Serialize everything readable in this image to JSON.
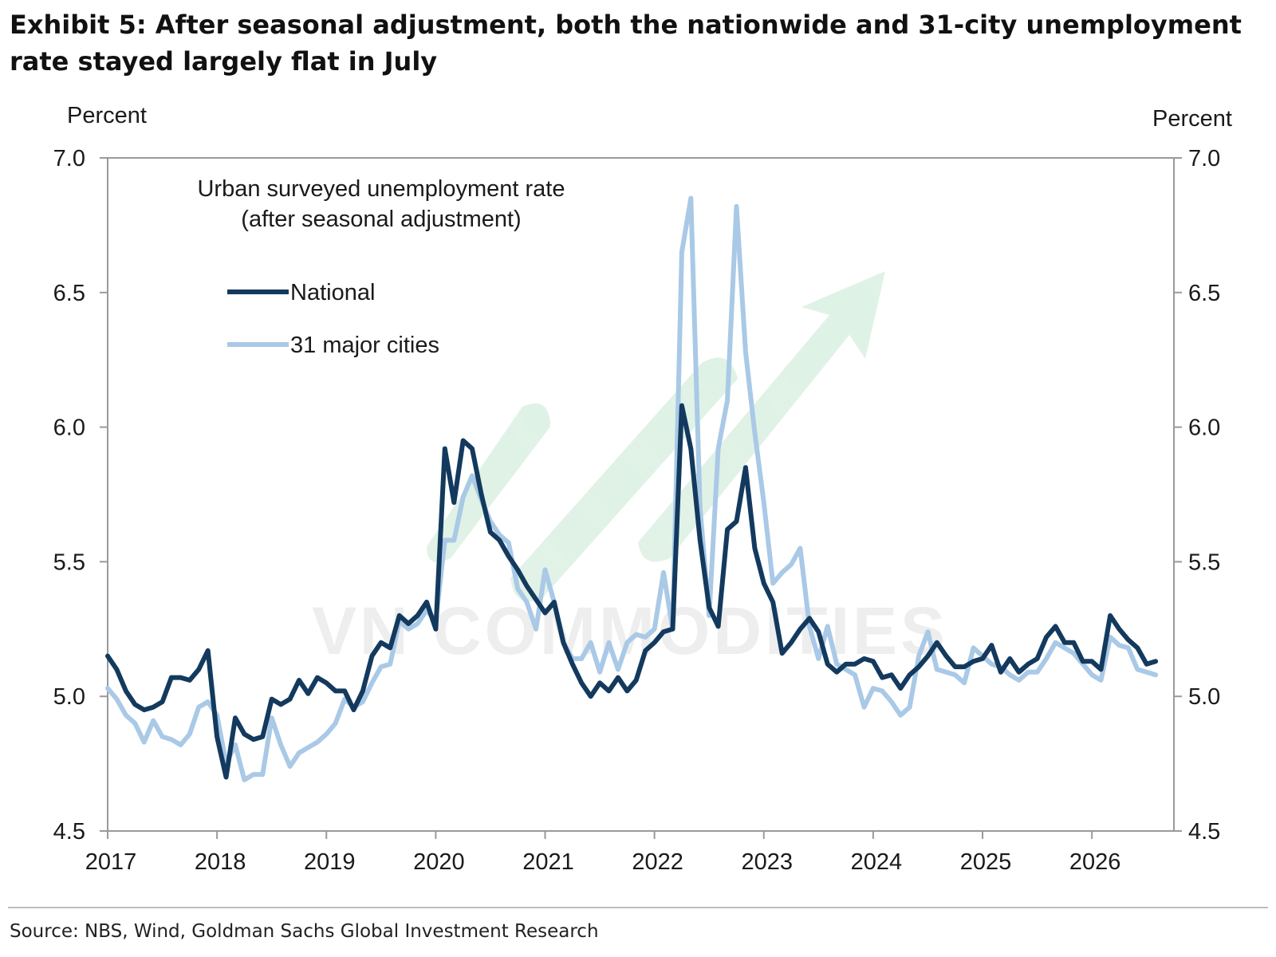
{
  "title": "Exhibit 5: After seasonal adjustment, both the nationwide and 31-city unemployment rate stayed largely flat in July",
  "source": "Source: NBS, Wind, Goldman Sachs Global Investment Research",
  "watermark": "VN COMMODITIES",
  "chart_data": {
    "type": "line",
    "title": "Urban surveyed unemployment rate",
    "subtitle": "(after seasonal adjustment)",
    "ylabel_left": "Percent",
    "ylabel_right": "Percent",
    "ylim": [
      4.5,
      7.0
    ],
    "yticks": [
      "4.5",
      "5.0",
      "5.5",
      "6.0",
      "6.5",
      "7.0"
    ],
    "xlim": [
      2017.0,
      2026.75
    ],
    "xticks": [
      "2017",
      "2018",
      "2019",
      "2020",
      "2021",
      "2022",
      "2023",
      "2024",
      "2025",
      "2026"
    ],
    "grid": false,
    "legend": "upper-left",
    "series": [
      {
        "name": "National",
        "color": "#133a5e",
        "x": [
          2017.0,
          2017.083,
          2017.167,
          2017.25,
          2017.333,
          2017.417,
          2017.5,
          2017.583,
          2017.667,
          2017.75,
          2017.833,
          2017.917,
          2018.0,
          2018.083,
          2018.167,
          2018.25,
          2018.333,
          2018.417,
          2018.5,
          2018.583,
          2018.667,
          2018.75,
          2018.833,
          2018.917,
          2019.0,
          2019.083,
          2019.167,
          2019.25,
          2019.333,
          2019.417,
          2019.5,
          2019.583,
          2019.667,
          2019.75,
          2019.833,
          2019.917,
          2020.0,
          2020.083,
          2020.167,
          2020.25,
          2020.333,
          2020.417,
          2020.5,
          2020.583,
          2020.667,
          2020.75,
          2020.833,
          2020.917,
          2021.0,
          2021.083,
          2021.167,
          2021.25,
          2021.333,
          2021.417,
          2021.5,
          2021.583,
          2021.667,
          2021.75,
          2021.833,
          2021.917,
          2022.0,
          2022.083,
          2022.167,
          2022.25,
          2022.333,
          2022.417,
          2022.5,
          2022.583,
          2022.667,
          2022.75,
          2022.833,
          2022.917,
          2023.0,
          2023.083,
          2023.167,
          2023.25,
          2023.333,
          2023.417,
          2023.5,
          2023.583,
          2023.667,
          2023.75,
          2023.833,
          2023.917,
          2024.0,
          2024.083,
          2024.167,
          2024.25,
          2024.333,
          2024.417,
          2024.5,
          2024.583,
          2024.667,
          2024.75,
          2024.833,
          2024.917,
          2025.0,
          2025.083,
          2025.167,
          2025.25,
          2025.333,
          2025.417,
          2025.5,
          2025.583,
          2025.667,
          2025.75,
          2025.833,
          2025.917,
          2026.0,
          2026.083,
          2026.167,
          2026.25,
          2026.333,
          2026.417,
          2026.5,
          2026.583
        ],
        "values": [
          5.15,
          5.1,
          5.02,
          4.97,
          4.95,
          4.96,
          4.98,
          5.07,
          5.07,
          5.06,
          5.1,
          5.17,
          4.85,
          4.7,
          4.92,
          4.86,
          4.84,
          4.85,
          4.99,
          4.97,
          4.99,
          5.06,
          5.01,
          5.07,
          5.05,
          5.02,
          5.02,
          4.95,
          5.02,
          5.15,
          5.2,
          5.18,
          5.3,
          5.27,
          5.3,
          5.35,
          5.25,
          5.92,
          5.72,
          5.95,
          5.92,
          5.75,
          5.61,
          5.58,
          5.52,
          5.47,
          5.41,
          5.36,
          5.31,
          5.35,
          5.2,
          5.12,
          5.05,
          5.0,
          5.05,
          5.02,
          5.07,
          5.02,
          5.06,
          5.17,
          5.2,
          5.24,
          5.25,
          6.08,
          5.92,
          5.58,
          5.33,
          5.26,
          5.62,
          5.65,
          5.85,
          5.55,
          5.42,
          5.35,
          5.16,
          5.2,
          5.25,
          5.29,
          5.24,
          5.12,
          5.09,
          5.12,
          5.12,
          5.14,
          5.13,
          5.07,
          5.08,
          5.03,
          5.08,
          5.11,
          5.15,
          5.2,
          5.15,
          5.11,
          5.11,
          5.13,
          5.14,
          5.19,
          5.09,
          5.14,
          5.09,
          5.12,
          5.14,
          5.22,
          5.26,
          5.2,
          5.2,
          5.13,
          5.13,
          5.1,
          5.3,
          5.25,
          5.21,
          5.18,
          5.12,
          5.13
        ]
      },
      {
        "name": "31 major cities",
        "color": "#a9c9e6",
        "x": [
          2017.0,
          2017.083,
          2017.167,
          2017.25,
          2017.333,
          2017.417,
          2017.5,
          2017.583,
          2017.667,
          2017.75,
          2017.833,
          2017.917,
          2018.0,
          2018.083,
          2018.167,
          2018.25,
          2018.333,
          2018.417,
          2018.5,
          2018.583,
          2018.667,
          2018.75,
          2018.833,
          2018.917,
          2019.0,
          2019.083,
          2019.167,
          2019.25,
          2019.333,
          2019.417,
          2019.5,
          2019.583,
          2019.667,
          2019.75,
          2019.833,
          2019.917,
          2020.0,
          2020.083,
          2020.167,
          2020.25,
          2020.333,
          2020.417,
          2020.5,
          2020.583,
          2020.667,
          2020.75,
          2020.833,
          2020.917,
          2021.0,
          2021.083,
          2021.167,
          2021.25,
          2021.333,
          2021.417,
          2021.5,
          2021.583,
          2021.667,
          2021.75,
          2021.833,
          2021.917,
          2022.0,
          2022.083,
          2022.167,
          2022.25,
          2022.333,
          2022.417,
          2022.5,
          2022.583,
          2022.667,
          2022.75,
          2022.833,
          2022.917,
          2023.0,
          2023.083,
          2023.167,
          2023.25,
          2023.333,
          2023.417,
          2023.5,
          2023.583,
          2023.667,
          2023.75,
          2023.833,
          2023.917,
          2024.0,
          2024.083,
          2024.167,
          2024.25,
          2024.333,
          2024.417,
          2024.5,
          2024.583,
          2024.667,
          2024.75,
          2024.833,
          2024.917,
          2025.0,
          2025.083,
          2025.167,
          2025.25,
          2025.333,
          2025.417,
          2025.5,
          2025.583,
          2025.667,
          2025.75,
          2025.833,
          2025.917,
          2026.0,
          2026.083,
          2026.167,
          2026.25,
          2026.333,
          2026.417,
          2026.5,
          2026.583
        ],
        "values": [
          5.03,
          4.99,
          4.93,
          4.9,
          4.83,
          4.91,
          4.85,
          4.84,
          4.82,
          4.86,
          4.96,
          4.98,
          4.93,
          4.75,
          4.82,
          4.69,
          4.71,
          4.71,
          4.92,
          4.82,
          4.74,
          4.79,
          4.81,
          4.83,
          4.86,
          4.9,
          4.99,
          4.96,
          4.98,
          5.05,
          5.11,
          5.12,
          5.28,
          5.25,
          5.27,
          5.32,
          5.28,
          5.58,
          5.58,
          5.74,
          5.82,
          5.73,
          5.65,
          5.6,
          5.57,
          5.4,
          5.35,
          5.25,
          5.47,
          5.35,
          5.2,
          5.14,
          5.14,
          5.2,
          5.09,
          5.2,
          5.1,
          5.2,
          5.23,
          5.22,
          5.25,
          5.46,
          5.25,
          6.65,
          6.85,
          5.7,
          5.3,
          5.92,
          6.1,
          6.82,
          6.28,
          5.98,
          5.72,
          5.42,
          5.46,
          5.49,
          5.55,
          5.26,
          5.14,
          5.26,
          5.12,
          5.1,
          5.08,
          4.96,
          5.03,
          5.02,
          4.98,
          4.93,
          4.96,
          5.15,
          5.24,
          5.1,
          5.09,
          5.08,
          5.05,
          5.18,
          5.15,
          5.12,
          5.11,
          5.08,
          5.06,
          5.09,
          5.09,
          5.14,
          5.2,
          5.18,
          5.16,
          5.12,
          5.08,
          5.06,
          5.22,
          5.19,
          5.18,
          5.1,
          5.09,
          5.08
        ]
      }
    ]
  }
}
